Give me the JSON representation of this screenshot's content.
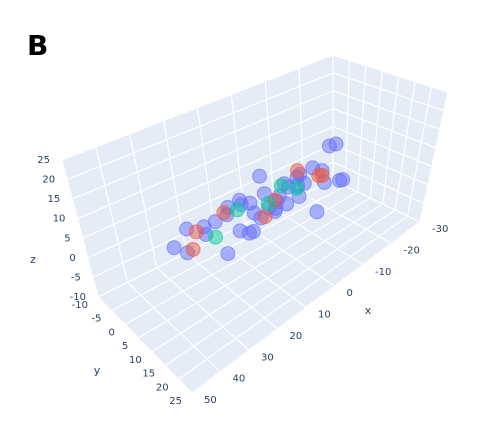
{
  "panel_label": "B",
  "chart_data": {
    "type": "scatter3d",
    "xlabel": "x",
    "ylabel": "y",
    "zlabel": "z",
    "xlim": [
      -30,
      50
    ],
    "xticks": [
      -30,
      -20,
      -10,
      0,
      10,
      20,
      30,
      40,
      50
    ],
    "ylim": [
      -10,
      25
    ],
    "yticks": [
      -10,
      -5,
      0,
      5,
      10,
      15,
      20,
      25
    ],
    "zlim": [
      -10,
      25
    ],
    "zticks": [
      -10,
      -5,
      0,
      5,
      10,
      15,
      20,
      25
    ],
    "grid": true,
    "series": [
      {
        "color": "#636efa",
        "x": [
          -18,
          -15,
          -14,
          -12,
          -10,
          -9,
          -8,
          -6,
          -5,
          -4,
          -3,
          -2,
          -1,
          0,
          1,
          2,
          3,
          4,
          5,
          6,
          7,
          8,
          9,
          10,
          11,
          12,
          13,
          14,
          15,
          16,
          17,
          18,
          20,
          22,
          24,
          26,
          28,
          30,
          33,
          36
        ],
        "y": [
          4,
          10,
          6,
          12,
          8,
          3,
          11,
          9,
          5,
          13,
          7,
          5,
          10,
          4,
          12,
          8,
          6,
          11,
          3,
          9,
          8,
          12,
          5,
          10,
          6,
          4,
          9,
          13,
          7,
          11,
          5,
          10,
          8,
          6,
          12,
          7,
          9,
          5,
          8,
          7
        ],
        "z": [
          10,
          4,
          12,
          6,
          8,
          3,
          7,
          11,
          5,
          2,
          9,
          6,
          12,
          4,
          8,
          10,
          3,
          7,
          11,
          5,
          6,
          10,
          4,
          12,
          8,
          7,
          3,
          9,
          11,
          5,
          9,
          6,
          10,
          8,
          4,
          7,
          11,
          9,
          6,
          8
        ]
      },
      {
        "color": "#ef553b",
        "x": [
          -12,
          -8,
          -5,
          5,
          10,
          20,
          28,
          32
        ],
        "y": [
          6,
          9,
          5,
          8,
          10,
          7,
          6,
          9
        ],
        "z": [
          5,
          8,
          9,
          7,
          6,
          10,
          8,
          7
        ]
      },
      {
        "color": "#00cc96",
        "x": [
          -2,
          2,
          8,
          15,
          24
        ],
        "y": [
          8,
          7,
          9,
          6,
          8
        ],
        "z": [
          7,
          9,
          8,
          8,
          6
        ]
      }
    ]
  }
}
